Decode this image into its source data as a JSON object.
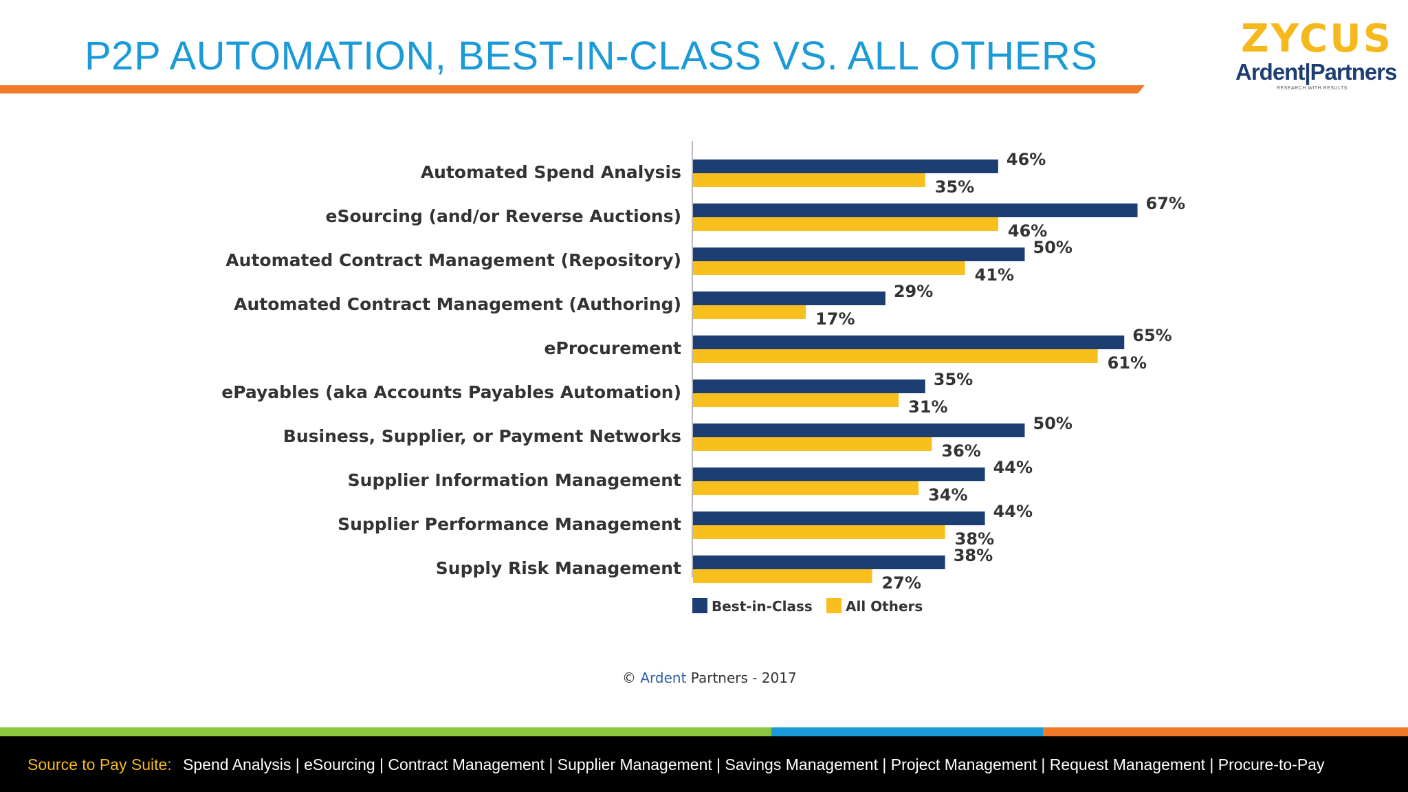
{
  "header": {
    "title": "P2P AUTOMATION, BEST-IN-CLASS VS. ALL OTHERS",
    "logo_zycus": "ZYCUS",
    "logo_ardent": "Ardent|Partners",
    "logo_tagline": "RESEARCH WITH RESULTS"
  },
  "colors": {
    "best_in_class": "#1d3e73",
    "all_others": "#f9bf1c",
    "title": "#1a9ad7",
    "rule": "#f07a2a",
    "band_green": "#8dc63f",
    "band_blue": "#1a9ad7",
    "band_orange": "#f07a2a"
  },
  "chart_data": {
    "type": "bar",
    "orientation": "horizontal",
    "categories": [
      "Automated Spend Analysis",
      "eSourcing (and/or Reverse Auctions)",
      "Automated Contract Management (Repository)",
      "Automated Contract Management (Authoring)",
      "eProcurement",
      "ePayables (aka Accounts Payables Automation)",
      "Business, Supplier, or Payment Networks",
      "Supplier Information Management",
      "Supplier Performance Management",
      "Supply Risk Management"
    ],
    "series": [
      {
        "name": "Best-in-Class",
        "values": [
          46,
          67,
          50,
          29,
          65,
          35,
          50,
          44,
          44,
          38
        ]
      },
      {
        "name": "All Others",
        "values": [
          35,
          46,
          41,
          17,
          61,
          31,
          36,
          34,
          38,
          27
        ]
      }
    ],
    "value_suffix": "%",
    "xlim": [
      0,
      100
    ],
    "legend": "bottom",
    "grid": false
  },
  "copyright": {
    "symbol": "©",
    "brand": "Ardent",
    "rest": "Partners - 2017"
  },
  "footer": {
    "lead": "Source to Pay Suite:",
    "items": "Spend Analysis | eSourcing | Contract Management | Supplier Management | Savings Management | Project Management | Request Management | Procure-to-Pay"
  }
}
